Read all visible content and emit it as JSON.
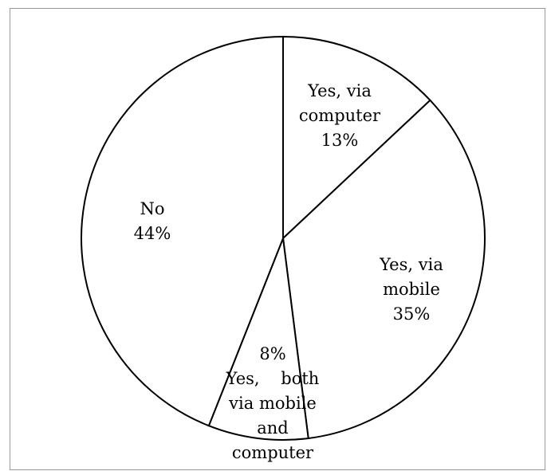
{
  "chart_data": {
    "type": "pie",
    "title": "",
    "start_angle_deg": 0,
    "direction": "clockwise",
    "slices": [
      {
        "label": [
          "Yes, via",
          "computer",
          "13%"
        ],
        "value": 13
      },
      {
        "label": [
          "Yes, via",
          "mobile",
          "35%"
        ],
        "value": 35
      },
      {
        "label": [
          "8%",
          "Yes,    both",
          "via mobile",
          "and",
          "computer"
        ],
        "value": 8
      },
      {
        "label": [
          "No",
          "44%"
        ],
        "value": 44
      }
    ],
    "colors": {
      "fill": "#ffffff",
      "stroke": "#000000",
      "text": "#000000",
      "frame": "#9a9a9a"
    }
  }
}
